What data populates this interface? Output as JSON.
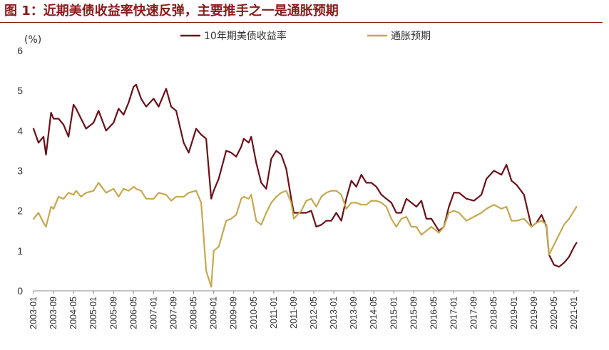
{
  "page": {
    "title": "图 1：近期美债收益率快速反弹，主要推手之一是通胀预期"
  },
  "chart_data": {
    "type": "line",
    "title": "图 1：近期美债收益率快速反弹，主要推手之一是通胀预期",
    "ylabel": "(%)",
    "xlabel": "",
    "ylim": [
      0,
      6
    ],
    "yticks": [
      0,
      1,
      2,
      3,
      4,
      5,
      6
    ],
    "xlim": [
      "2003-01",
      "2021-03"
    ],
    "xtick_labels": [
      "2003-01",
      "2003-09",
      "2004-05",
      "2005-01",
      "2005-09",
      "2006-05",
      "2007-01",
      "2007-09",
      "2008-05",
      "2009-01",
      "2009-09",
      "2010-05",
      "2011-01",
      "2011-09",
      "2012-05",
      "2013-01",
      "2013-09",
      "2014-05",
      "2015-01",
      "2015-09",
      "2016-05",
      "2017-01",
      "2017-09",
      "2018-05",
      "2019-01",
      "2019-09",
      "2020-05",
      "2021-01"
    ],
    "grid": false,
    "legend_position": "top",
    "series": [
      {
        "name": "10年期美债收益率",
        "color": "#6b1019",
        "x": [
          "2003-01",
          "2003-03",
          "2003-05",
          "2003-06",
          "2003-08",
          "2003-09",
          "2003-11",
          "2004-01",
          "2004-03",
          "2004-05",
          "2004-06",
          "2004-08",
          "2004-10",
          "2005-01",
          "2005-03",
          "2005-06",
          "2005-09",
          "2005-11",
          "2006-01",
          "2006-03",
          "2006-05",
          "2006-06",
          "2006-08",
          "2006-10",
          "2007-01",
          "2007-03",
          "2007-06",
          "2007-08",
          "2007-10",
          "2008-01",
          "2008-03",
          "2008-06",
          "2008-08",
          "2008-10",
          "2008-12",
          "2009-01",
          "2009-03",
          "2009-06",
          "2009-08",
          "2009-10",
          "2009-12",
          "2010-01",
          "2010-03",
          "2010-04",
          "2010-06",
          "2010-08",
          "2010-10",
          "2010-12",
          "2011-02",
          "2011-04",
          "2011-06",
          "2011-08",
          "2011-09",
          "2011-12",
          "2012-02",
          "2012-04",
          "2012-06",
          "2012-08",
          "2012-10",
          "2012-12",
          "2013-02",
          "2013-04",
          "2013-06",
          "2013-08",
          "2013-10",
          "2013-12",
          "2014-02",
          "2014-04",
          "2014-06",
          "2014-08",
          "2014-10",
          "2014-12",
          "2015-02",
          "2015-04",
          "2015-06",
          "2015-08",
          "2015-10",
          "2015-12",
          "2016-02",
          "2016-04",
          "2016-07",
          "2016-09",
          "2016-11",
          "2017-01",
          "2017-03",
          "2017-06",
          "2017-09",
          "2017-12",
          "2018-02",
          "2018-05",
          "2018-08",
          "2018-10",
          "2018-12",
          "2019-02",
          "2019-05",
          "2019-08",
          "2019-10",
          "2019-12",
          "2020-02",
          "2020-03",
          "2020-05",
          "2020-07",
          "2020-09",
          "2020-11",
          "2021-01",
          "2021-02"
        ],
        "y": [
          4.05,
          3.7,
          3.85,
          3.4,
          4.45,
          4.3,
          4.3,
          4.15,
          3.85,
          4.65,
          4.55,
          4.3,
          4.05,
          4.2,
          4.5,
          4.0,
          4.2,
          4.55,
          4.4,
          4.7,
          5.1,
          5.15,
          4.8,
          4.6,
          4.8,
          4.6,
          5.05,
          4.6,
          4.5,
          3.7,
          3.45,
          4.05,
          3.9,
          3.8,
          2.3,
          2.5,
          2.8,
          3.5,
          3.45,
          3.35,
          3.6,
          3.8,
          3.7,
          3.85,
          3.2,
          2.7,
          2.55,
          3.3,
          3.5,
          3.4,
          3.05,
          2.3,
          1.95,
          1.95,
          1.95,
          2.0,
          1.6,
          1.65,
          1.75,
          1.75,
          1.95,
          1.75,
          2.3,
          2.75,
          2.6,
          2.9,
          2.7,
          2.7,
          2.6,
          2.4,
          2.3,
          2.2,
          1.95,
          1.95,
          2.3,
          2.2,
          2.1,
          2.25,
          1.8,
          1.8,
          1.5,
          1.6,
          2.1,
          2.45,
          2.45,
          2.3,
          2.25,
          2.4,
          2.8,
          3.0,
          2.9,
          3.15,
          2.75,
          2.65,
          2.4,
          1.6,
          1.7,
          1.9,
          1.6,
          0.9,
          0.65,
          0.6,
          0.7,
          0.85,
          1.1,
          1.2
        ]
      },
      {
        "name": "通胀预期",
        "color": "#c6a84e",
        "x": [
          "2003-01",
          "2003-03",
          "2003-05",
          "2003-06",
          "2003-08",
          "2003-09",
          "2003-11",
          "2004-01",
          "2004-03",
          "2004-05",
          "2004-06",
          "2004-08",
          "2004-10",
          "2005-01",
          "2005-03",
          "2005-06",
          "2005-09",
          "2005-11",
          "2006-01",
          "2006-03",
          "2006-05",
          "2006-06",
          "2006-08",
          "2006-10",
          "2007-01",
          "2007-03",
          "2007-06",
          "2007-08",
          "2007-10",
          "2008-01",
          "2008-03",
          "2008-06",
          "2008-08",
          "2008-10",
          "2008-12",
          "2009-01",
          "2009-03",
          "2009-06",
          "2009-08",
          "2009-10",
          "2009-12",
          "2010-01",
          "2010-03",
          "2010-04",
          "2010-06",
          "2010-08",
          "2010-10",
          "2010-12",
          "2011-02",
          "2011-04",
          "2011-06",
          "2011-08",
          "2011-09",
          "2011-12",
          "2012-02",
          "2012-04",
          "2012-06",
          "2012-08",
          "2012-10",
          "2012-12",
          "2013-02",
          "2013-04",
          "2013-06",
          "2013-08",
          "2013-10",
          "2013-12",
          "2014-02",
          "2014-04",
          "2014-06",
          "2014-08",
          "2014-10",
          "2014-12",
          "2015-02",
          "2015-04",
          "2015-06",
          "2015-08",
          "2015-10",
          "2015-12",
          "2016-02",
          "2016-04",
          "2016-07",
          "2016-09",
          "2016-11",
          "2017-01",
          "2017-03",
          "2017-06",
          "2017-09",
          "2017-12",
          "2018-02",
          "2018-05",
          "2018-08",
          "2018-10",
          "2018-12",
          "2019-02",
          "2019-05",
          "2019-08",
          "2019-10",
          "2019-12",
          "2020-02",
          "2020-03",
          "2020-05",
          "2020-07",
          "2020-09",
          "2020-11",
          "2021-01",
          "2021-02"
        ],
        "y": [
          1.8,
          1.95,
          1.7,
          1.6,
          2.1,
          2.05,
          2.35,
          2.3,
          2.45,
          2.4,
          2.5,
          2.35,
          2.45,
          2.5,
          2.7,
          2.45,
          2.55,
          2.35,
          2.55,
          2.5,
          2.6,
          2.55,
          2.5,
          2.3,
          2.3,
          2.45,
          2.4,
          2.25,
          2.35,
          2.35,
          2.45,
          2.5,
          2.2,
          0.5,
          0.1,
          1.0,
          1.1,
          1.75,
          1.8,
          1.9,
          2.3,
          2.35,
          2.3,
          2.4,
          1.75,
          1.65,
          1.95,
          2.2,
          2.35,
          2.45,
          2.5,
          2.2,
          1.8,
          2.0,
          2.25,
          2.3,
          2.1,
          2.35,
          2.45,
          2.5,
          2.5,
          2.4,
          2.05,
          2.2,
          2.2,
          2.15,
          2.15,
          2.25,
          2.25,
          2.2,
          2.1,
          1.8,
          1.6,
          1.8,
          1.85,
          1.6,
          1.6,
          1.4,
          1.5,
          1.6,
          1.45,
          1.6,
          1.95,
          2.0,
          1.95,
          1.75,
          1.85,
          1.95,
          2.05,
          2.15,
          2.05,
          2.1,
          1.75,
          1.75,
          1.8,
          1.6,
          1.7,
          1.75,
          1.65,
          0.9,
          1.15,
          1.4,
          1.65,
          1.8,
          2.0,
          2.1
        ]
      }
    ]
  }
}
